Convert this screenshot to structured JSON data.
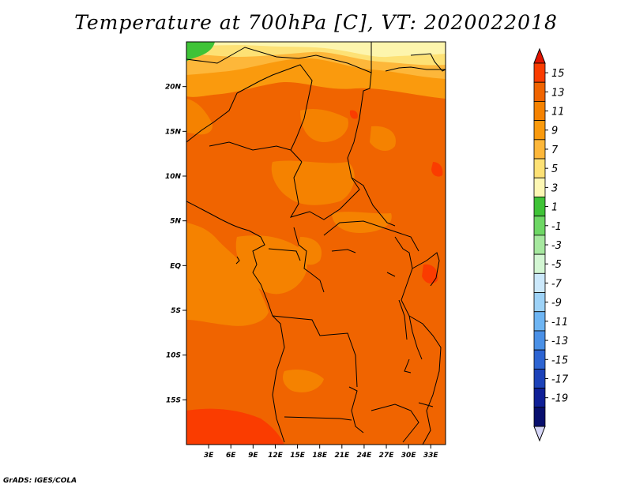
{
  "title": "Temperature at 700hPa [C], VT: 2020022018",
  "credit": "GrADS: IGES/COLA",
  "map": {
    "lon_range": [
      0,
      35
    ],
    "lat_range": [
      -20,
      25
    ],
    "lat_ticks": [
      {
        "value": 20,
        "label": "20N"
      },
      {
        "value": 15,
        "label": "15N"
      },
      {
        "value": 10,
        "label": "10N"
      },
      {
        "value": 5,
        "label": "5N"
      },
      {
        "value": 0,
        "label": "EQ"
      },
      {
        "value": -5,
        "label": "5S"
      },
      {
        "value": -10,
        "label": "10S"
      },
      {
        "value": -15,
        "label": "15S"
      }
    ],
    "lon_ticks": [
      {
        "value": 3,
        "label": "3E"
      },
      {
        "value": 6,
        "label": "6E"
      },
      {
        "value": 9,
        "label": "9E"
      },
      {
        "value": 12,
        "label": "12E"
      },
      {
        "value": 15,
        "label": "15E"
      },
      {
        "value": 18,
        "label": "18E"
      },
      {
        "value": 21,
        "label": "21E"
      },
      {
        "value": 24,
        "label": "24E"
      },
      {
        "value": 27,
        "label": "27E"
      },
      {
        "value": 30,
        "label": "30E"
      },
      {
        "value": 33,
        "label": "33E"
      }
    ]
  },
  "colorbar": {
    "labels": [
      "15",
      "13",
      "11",
      "9",
      "7",
      "5",
      "3",
      "1",
      "-1",
      "-3",
      "-5",
      "-7",
      "-9",
      "-11",
      "-13",
      "-15",
      "-17",
      "-19"
    ],
    "colors": [
      "#fa3c00",
      "#f06400",
      "#f58200",
      "#fa9a0d",
      "#fdb73a",
      "#fde175",
      "#fdf7b4",
      "#3fc337",
      "#6ed765",
      "#a6e89f",
      "#d3f6d3",
      "#cbe8fb",
      "#9dd2f7",
      "#6eb5f3",
      "#4a90e6",
      "#2d64d2",
      "#1c42b9",
      "#0f1f96",
      "#080f6e"
    ],
    "over_color": "#e11400",
    "under_color": "#d7d7f8"
  }
}
